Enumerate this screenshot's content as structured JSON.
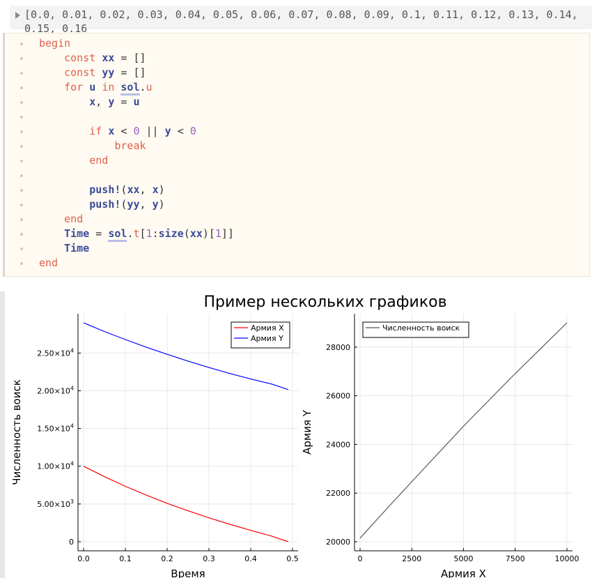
{
  "output": {
    "text": "[0.0, 0.01, 0.02, 0.03, 0.04, 0.05, 0.06, 0.07, 0.08, 0.09, 0.1, 0.11, 0.12, 0.13, 0.14, 0.15, 0.16"
  },
  "code": {
    "line_begin": "begin",
    "line_end": "end",
    "kw_const": "const",
    "kw_for": "for",
    "kw_in": "in",
    "kw_if": "if",
    "kw_break": "break",
    "kw_end": "end",
    "var_xx": "xx",
    "var_yy": "yy",
    "var_u": "u",
    "var_sol": "sol",
    "var_x": "x",
    "var_y": "y",
    "var_time": "Time",
    "fn_push": "push!",
    "fn_size": "size",
    "num_0": "0",
    "num_1": "1"
  },
  "figure": {
    "title": "Пример нескольких графиков"
  },
  "chart_data": [
    {
      "type": "line",
      "xlabel": "Время",
      "ylabel": "Численность воиск",
      "xlim": [
        0,
        0.5
      ],
      "ylim": [
        0,
        29000
      ],
      "x_ticks": [
        "0.0",
        "0.1",
        "0.2",
        "0.3",
        "0.4",
        "0.5"
      ],
      "y_ticks": [
        {
          "value": 0,
          "base": "0",
          "exp": ""
        },
        {
          "value": 5000,
          "base": "5.00×10",
          "exp": "3"
        },
        {
          "value": 10000,
          "base": "1.00×10",
          "exp": "4"
        },
        {
          "value": 15000,
          "base": "1.50×10",
          "exp": "4"
        },
        {
          "value": 20000,
          "base": "2.00×10",
          "exp": "4"
        },
        {
          "value": 25000,
          "base": "2.50×10",
          "exp": "4"
        }
      ],
      "grid": true,
      "legend": "top-right",
      "series": [
        {
          "name": "Армия X",
          "color": "#ff0000",
          "x": [
            0,
            0.05,
            0.1,
            0.15,
            0.2,
            0.25,
            0.3,
            0.35,
            0.4,
            0.45,
            0.49
          ],
          "y": [
            10000,
            8620,
            7340,
            6180,
            5090,
            4100,
            3170,
            2310,
            1510,
            750,
            0
          ]
        },
        {
          "name": "Армия Y",
          "color": "#0000ff",
          "x": [
            0,
            0.05,
            0.1,
            0.15,
            0.2,
            0.25,
            0.3,
            0.35,
            0.4,
            0.45,
            0.49
          ],
          "y": [
            29000,
            27850,
            26780,
            25780,
            24830,
            23930,
            23080,
            22290,
            21560,
            20890,
            20150
          ]
        }
      ]
    },
    {
      "type": "line",
      "xlabel": "Армия X",
      "ylabel": "Армия Y",
      "xlim": [
        0,
        10000
      ],
      "ylim": [
        20000,
        29000
      ],
      "x_ticks": [
        "0",
        "2500",
        "5000",
        "7500",
        "10000"
      ],
      "y_ticks": [
        "20000",
        "22000",
        "24000",
        "26000",
        "28000"
      ],
      "grid": true,
      "legend": "top-left",
      "series": [
        {
          "name": "Численность воиск",
          "color": "#555555",
          "x": [
            0,
            1510,
            3170,
            5090,
            7340,
            10000
          ],
          "y": [
            20150,
            21560,
            23080,
            24830,
            26780,
            29000
          ]
        }
      ]
    }
  ]
}
